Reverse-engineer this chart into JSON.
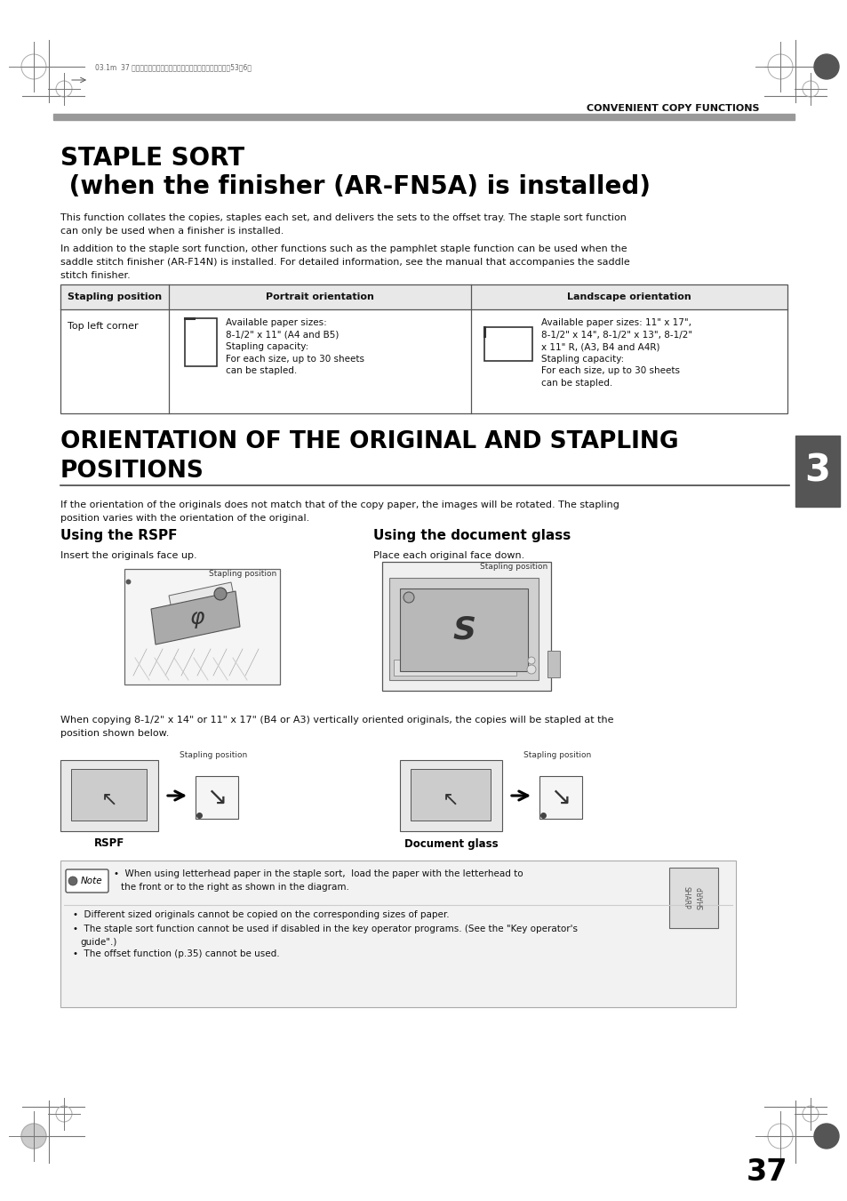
{
  "page_bg": "#ffffff",
  "header_text": "CONVENIENT COPY FUNCTIONS",
  "title1": "STAPLE SORT",
  "title2": " (when the finisher (AR-FN5A) is installed)",
  "body_text1": "This function collates the copies, staples each set, and delivers the sets to the offset tray. The staple sort function\ncan only be used when a finisher is installed.",
  "body_text2": "In addition to the staple sort function, other functions such as the pamphlet staple function can be used when the\nsaddle stitch finisher (AR-F14N) is installed. For detailed information, see the manual that accompanies the saddle\nstitch finisher.",
  "table_headers": [
    "Stapling position",
    "Portrait orientation",
    "Landscape orientation"
  ],
  "table_row1_col1": "Top left corner",
  "portrait_text": "Available paper sizes:\n8-1/2\" x 11\" (A4 and B5)\nStapling capacity:\nFor each size, up to 30 sheets\ncan be stapled.",
  "landscape_text": "Available paper sizes: 11\" x 17\",\n8-1/2\" x 14\", 8-1/2\" x 13\", 8-1/2\"\nx 11\" R, (A3, B4 and A4R)\nStapling capacity:\nFor each size, up to 30 sheets\ncan be stapled.",
  "section2_title_line1": "ORIENTATION OF THE ORIGINAL AND STAPLING",
  "section2_title_line2": "POSITIONS",
  "section2_body": "If the orientation of the originals does not match that of the copy paper, the images will be rotated. The stapling\nposition varies with the orientation of the original.",
  "rspf_title": "Using the RSPF",
  "rspf_body": "Insert the originals face up.",
  "glass_title": "Using the document glass",
  "glass_body": "Place each original face down.",
  "bottom_text": "When copying 8-1/2\" x 14\" or 11\" x 17\" (B4 or A3) vertically oriented originals, the copies will be stapled at the\nposition shown below.",
  "rspf_label": "RSPF",
  "glass_label": "Document glass",
  "stapling_position": "Stapling position",
  "note_text1a": "When using letterhead paper in the staple sort,  load the paper with the letterhead to",
  "note_text1b": "the front or to the right as shown in the diagram.",
  "note_bullet1": "Different sized originals cannot be copied on the corresponding sizes of paper.",
  "note_bullet2": "The staple sort function cannot be used if disabled in the key operator programs. (See the \"Key operator's",
  "note_bullet2b": "guide\".)",
  "note_bullet3": "The offset function (p.35) cannot be used.",
  "chapter_num": "3",
  "page_num": "37",
  "tab_color": "#555555",
  "gray_line": "#888888",
  "dark_gray": "#444444",
  "mid_gray": "#888888",
  "light_gray": "#cccccc",
  "table_header_bg": "#e8e8e8",
  "note_bg": "#f2f2f2"
}
